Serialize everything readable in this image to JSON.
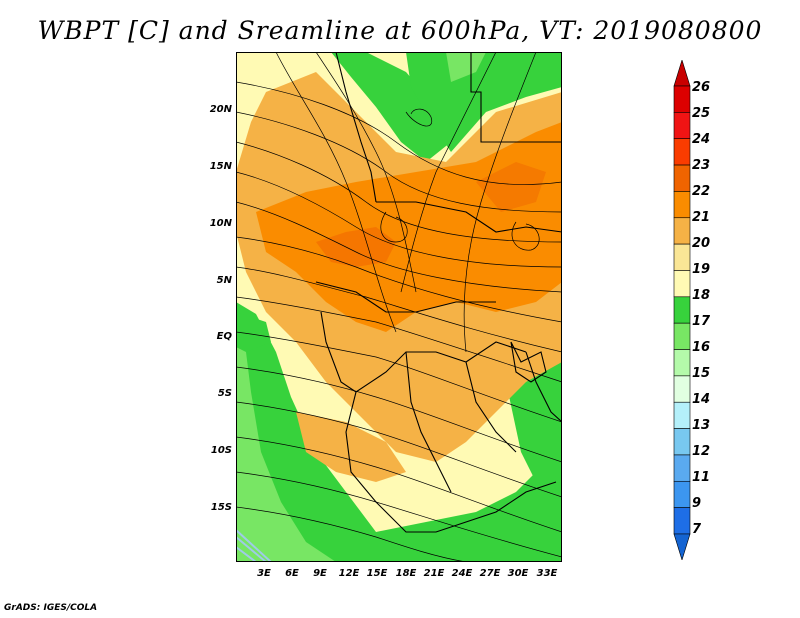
{
  "title": "WBPT [C] and Sreamline at 600hPa, VT: 2019080800",
  "credit": "GrADS: IGES/COLA",
  "map": {
    "lat_labels": [
      "20N",
      "15N",
      "10N",
      "5N",
      "EQ",
      "5S",
      "10S",
      "15S"
    ],
    "lon_labels": [
      "3E",
      "6E",
      "9E",
      "12E",
      "15E",
      "18E",
      "21E",
      "24E",
      "27E",
      "30E",
      "33E"
    ]
  },
  "colorbar": {
    "labels": [
      "26",
      "25",
      "24",
      "23",
      "22",
      "21",
      "20",
      "19",
      "18",
      "17",
      "16",
      "15",
      "14",
      "13",
      "12",
      "11",
      "9",
      "7"
    ],
    "colors": [
      "#c80000",
      "#dc0000",
      "#f01414",
      "#fa3c00",
      "#f06400",
      "#fa8c00",
      "#f5b246",
      "#fae696",
      "#fffab4",
      "#37d23c",
      "#78e664",
      "#b4faaa",
      "#e1ffe1",
      "#b4f0fa",
      "#78c8f0",
      "#5aaaf0",
      "#3c96f0",
      "#1e6ee6",
      "#1464d2"
    ]
  }
}
